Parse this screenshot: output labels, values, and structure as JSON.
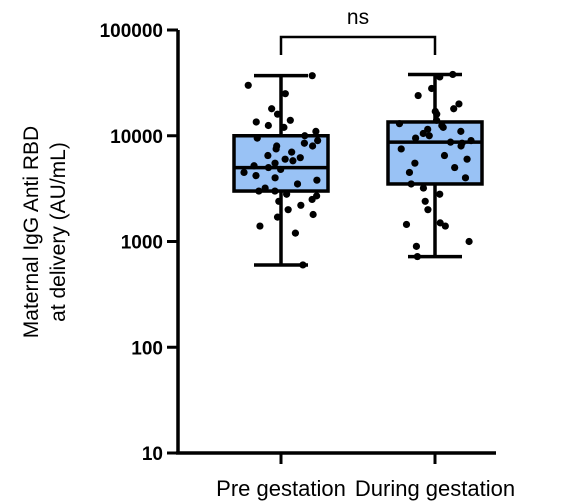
{
  "chart_data": {
    "type": "box",
    "y_scale": "log",
    "ylim": [
      10,
      100000
    ],
    "yticks": [
      "10",
      "100",
      "1000",
      "10000",
      "100000"
    ],
    "ylabel_lines": [
      "Maternal IgG Anti RBD",
      "at delivery (AU/mL)"
    ],
    "categories": [
      "Pre gestation",
      "During gestation"
    ],
    "box_fill": "#99C2F5",
    "line_color": "#000000",
    "significance": {
      "label": "ns",
      "between": [
        0,
        1
      ]
    },
    "groups": [
      {
        "name": "Pre gestation",
        "min": 600,
        "q1": 3000,
        "median": 5000,
        "q3": 10000,
        "max": 37000,
        "points": [
          37000,
          30000,
          25000,
          18000,
          16000,
          14000,
          13500,
          12500,
          12000,
          11000,
          10000,
          9500,
          9000,
          8500,
          8000,
          8000,
          7500,
          7000,
          6500,
          6200,
          6000,
          5800,
          5500,
          5200,
          5000,
          4800,
          4500,
          4200,
          4000,
          3800,
          3500,
          3200,
          3000,
          3000,
          2800,
          2700,
          2500,
          2400,
          2200,
          2000,
          1800,
          1700,
          1400,
          1200,
          600
        ]
      },
      {
        "name": "During gestation",
        "min": 720,
        "q1": 3500,
        "median": 8700,
        "q3": 13500,
        "max": 38000,
        "points": [
          38000,
          36000,
          28000,
          24000,
          20000,
          18000,
          17000,
          16000,
          14000,
          13000,
          12500,
          12000,
          11500,
          11000,
          10500,
          10000,
          9500,
          9000,
          8700,
          8500,
          8000,
          7500,
          6500,
          6000,
          5500,
          5000,
          4500,
          4000,
          3500,
          3200,
          2800,
          2400,
          2000,
          1500,
          1450,
          1400,
          1000,
          900,
          720
        ]
      }
    ]
  }
}
